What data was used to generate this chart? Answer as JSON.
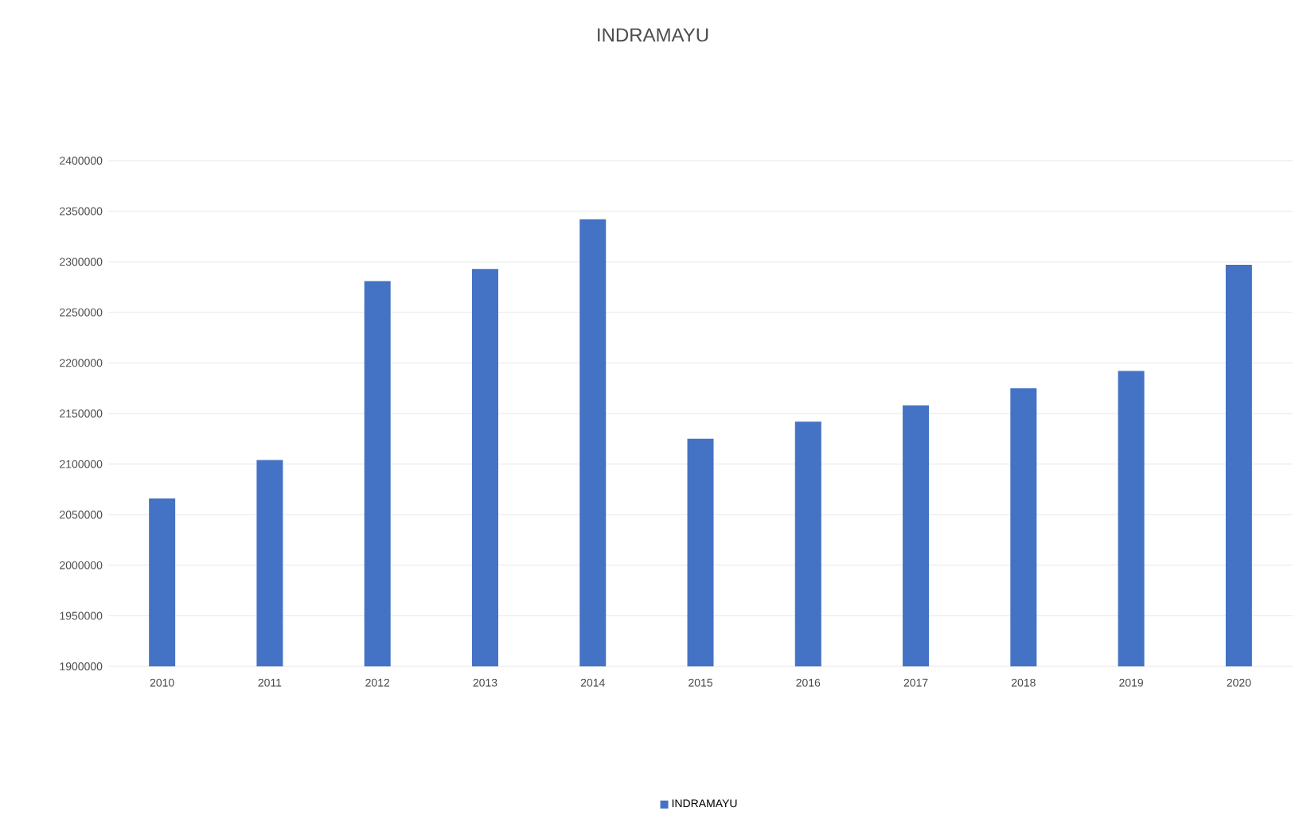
{
  "chart_data": {
    "type": "bar",
    "title": "INDRAMAYU",
    "categories": [
      "2010",
      "2011",
      "2012",
      "2013",
      "2014",
      "2015",
      "2016",
      "2017",
      "2018",
      "2019",
      "2020"
    ],
    "series": [
      {
        "name": "INDRAMAYU",
        "color": "#4472c4",
        "values": [
          2066000,
          2104000,
          2281000,
          2293000,
          2342000,
          2125000,
          2142000,
          2158000,
          2175000,
          2192000,
          2297000
        ]
      }
    ],
    "ylim": [
      1900000,
      2400000
    ],
    "yticks": [
      1900000,
      1950000,
      2000000,
      2050000,
      2100000,
      2150000,
      2200000,
      2250000,
      2300000,
      2350000,
      2400000
    ],
    "grid": "y",
    "legend": "bottom"
  }
}
